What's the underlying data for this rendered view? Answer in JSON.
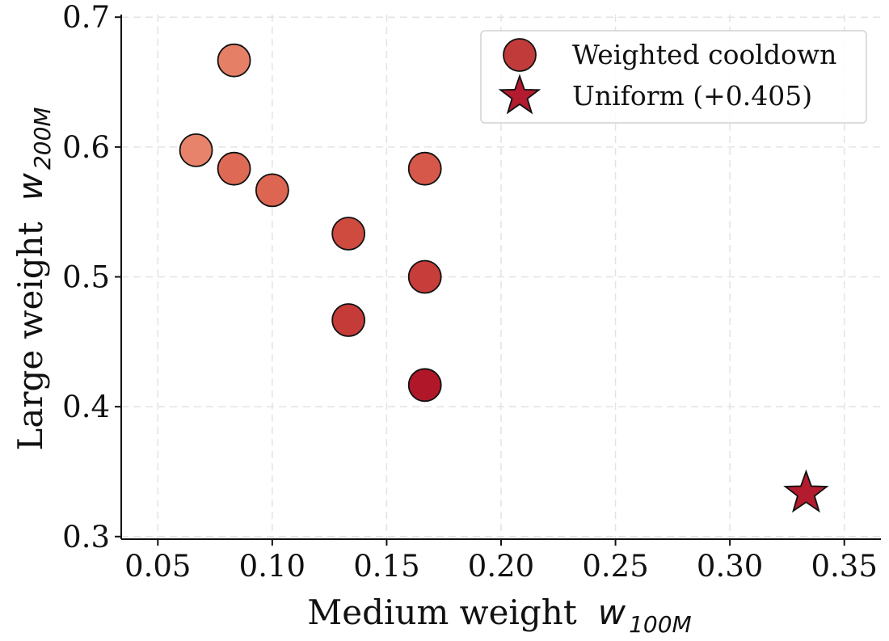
{
  "chart_data": {
    "type": "scatter",
    "xlabel": "Medium weight",
    "xlabel_symbol": "w",
    "xlabel_subscript": "100M",
    "ylabel": "Large weight",
    "ylabel_symbol": "w",
    "ylabel_subscript": "200M",
    "xlim": [
      0.034,
      0.366
    ],
    "ylim": [
      0.298,
      0.702
    ],
    "x_ticks": [
      0.05,
      0.1,
      0.15,
      0.2,
      0.25,
      0.3,
      0.35
    ],
    "x_tick_labels": [
      "0.05",
      "0.10",
      "0.15",
      "0.20",
      "0.25",
      "0.30",
      "0.35"
    ],
    "y_ticks": [
      0.3,
      0.4,
      0.5,
      0.6,
      0.7
    ],
    "y_tick_labels": [
      "0.3",
      "0.4",
      "0.5",
      "0.6",
      "0.7"
    ],
    "grid": true,
    "legend_position": "top-right",
    "series": [
      {
        "name": "Weighted cooldown",
        "marker": "circle",
        "legend_color": "#c23b3b",
        "points": [
          {
            "x": 0.0833,
            "y": 0.6667,
            "color": "#e57f66"
          },
          {
            "x": 0.0667,
            "y": 0.5975,
            "color": "#e6836a"
          },
          {
            "x": 0.0833,
            "y": 0.5833,
            "color": "#de6a55"
          },
          {
            "x": 0.1,
            "y": 0.5667,
            "color": "#dd6652"
          },
          {
            "x": 0.1333,
            "y": 0.5333,
            "color": "#cf4b40"
          },
          {
            "x": 0.1667,
            "y": 0.5833,
            "color": "#d5584a"
          },
          {
            "x": 0.1667,
            "y": 0.5,
            "color": "#c73d3a"
          },
          {
            "x": 0.1333,
            "y": 0.4667,
            "color": "#c53b38"
          },
          {
            "x": 0.1667,
            "y": 0.4167,
            "color": "#b0182a"
          }
        ]
      },
      {
        "name": "Uniform (+0.405)",
        "marker": "star",
        "legend_color": "#b31b2e",
        "points": [
          {
            "x": 0.3333,
            "y": 0.3333,
            "color": "#b31b2e"
          }
        ]
      }
    ]
  }
}
